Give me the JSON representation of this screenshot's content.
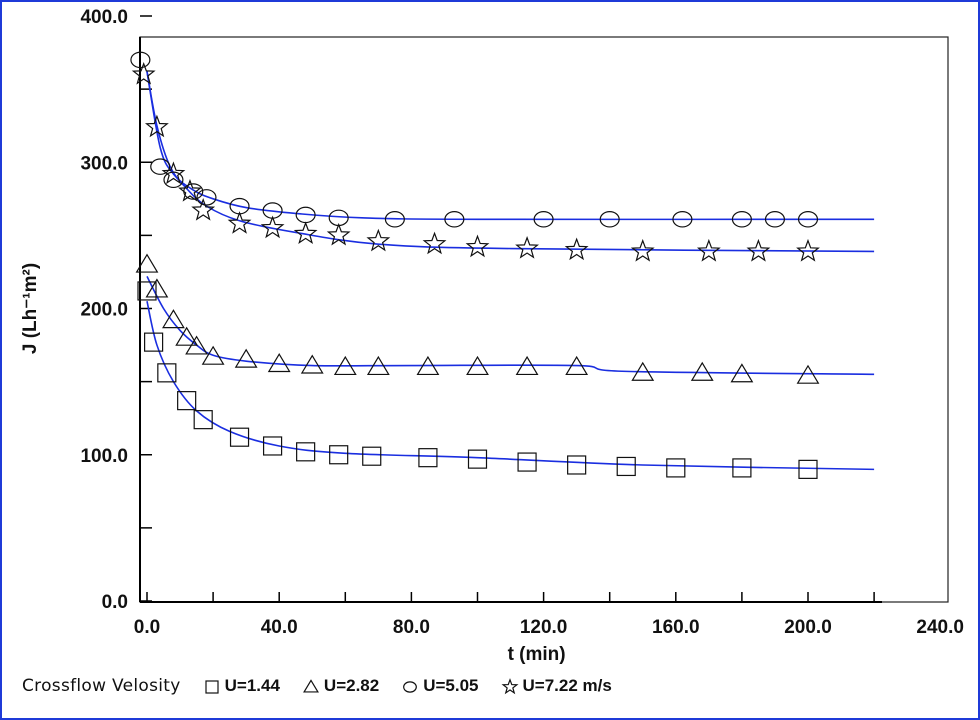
{
  "chart_data": {
    "type": "scatter",
    "title": "",
    "xlabel": "t (min)",
    "ylabel": "J (Lh⁻¹m²)",
    "xlim": [
      0,
      240
    ],
    "ylim": [
      0,
      400
    ],
    "xticks": [
      "0.0",
      "40.0",
      "80.0",
      "120.0",
      "160.0",
      "200.0",
      "240.0"
    ],
    "yticks": [
      "0.0",
      "100.0",
      "200.0",
      "300.0",
      "400.0"
    ],
    "legend": {
      "title": "Crossflow Velosity",
      "placement": "bottom"
    },
    "series": [
      {
        "name": "U=1.44",
        "marker": "square",
        "points": [
          [
            0,
            212
          ],
          [
            2,
            177
          ],
          [
            6,
            156
          ],
          [
            12,
            137
          ],
          [
            17,
            124
          ],
          [
            28,
            112
          ],
          [
            38,
            106
          ],
          [
            48,
            102
          ],
          [
            58,
            100
          ],
          [
            68,
            99
          ],
          [
            85,
            98
          ],
          [
            100,
            97
          ],
          [
            115,
            95
          ],
          [
            130,
            93
          ],
          [
            145,
            92
          ],
          [
            160,
            91
          ],
          [
            180,
            91
          ],
          [
            200,
            90
          ]
        ],
        "fit": [
          [
            0,
            205
          ],
          [
            3,
            175
          ],
          [
            8,
            150
          ],
          [
            15,
            130
          ],
          [
            25,
            116
          ],
          [
            40,
            106
          ],
          [
            60,
            101
          ],
          [
            100,
            98
          ],
          [
            150,
            93
          ],
          [
            220,
            90
          ]
        ]
      },
      {
        "name": "U=2.82",
        "marker": "triangle",
        "points": [
          [
            0,
            230
          ],
          [
            3,
            213
          ],
          [
            8,
            192
          ],
          [
            12,
            180
          ],
          [
            15,
            174
          ],
          [
            20,
            167
          ],
          [
            30,
            165
          ],
          [
            40,
            162
          ],
          [
            50,
            161
          ],
          [
            60,
            160
          ],
          [
            70,
            160
          ],
          [
            85,
            160
          ],
          [
            100,
            160
          ],
          [
            115,
            160
          ],
          [
            130,
            160
          ],
          [
            150,
            156
          ],
          [
            168,
            156
          ],
          [
            180,
            155
          ],
          [
            200,
            154
          ]
        ],
        "fit": [
          [
            0,
            222
          ],
          [
            5,
            200
          ],
          [
            10,
            185
          ],
          [
            15,
            175
          ],
          [
            20,
            168
          ],
          [
            30,
            164
          ],
          [
            50,
            161
          ],
          [
            80,
            161
          ],
          [
            130,
            161
          ],
          [
            145,
            157
          ],
          [
            220,
            155
          ]
        ]
      },
      {
        "name": "U=5.05",
        "marker": "circle",
        "points": [
          [
            -2,
            370
          ],
          [
            4,
            297
          ],
          [
            8,
            288
          ],
          [
            14,
            280
          ],
          [
            18,
            276
          ],
          [
            28,
            270
          ],
          [
            38,
            267
          ],
          [
            48,
            264
          ],
          [
            58,
            262
          ],
          [
            75,
            261
          ],
          [
            93,
            261
          ],
          [
            120,
            261
          ],
          [
            140,
            261
          ],
          [
            162,
            261
          ],
          [
            180,
            261
          ],
          [
            190,
            261
          ],
          [
            200,
            261
          ]
        ],
        "fit": [
          [
            0,
            362
          ],
          [
            4,
            310
          ],
          [
            8,
            292
          ],
          [
            14,
            281
          ],
          [
            20,
            275
          ],
          [
            30,
            269
          ],
          [
            45,
            265
          ],
          [
            65,
            262
          ],
          [
            100,
            261
          ],
          [
            220,
            261
          ]
        ]
      },
      {
        "name": "U=7.22 m/s",
        "marker": "star",
        "points": [
          [
            -1,
            360
          ],
          [
            3,
            324
          ],
          [
            8,
            292
          ],
          [
            13,
            280
          ],
          [
            17,
            267
          ],
          [
            28,
            258
          ],
          [
            38,
            255
          ],
          [
            48,
            251
          ],
          [
            58,
            250
          ],
          [
            70,
            246
          ],
          [
            87,
            244
          ],
          [
            100,
            242
          ],
          [
            115,
            241
          ],
          [
            130,
            240
          ],
          [
            150,
            239
          ],
          [
            170,
            239
          ],
          [
            185,
            239
          ],
          [
            200,
            239
          ]
        ],
        "fit": [
          [
            0,
            362
          ],
          [
            3,
            325
          ],
          [
            7,
            297
          ],
          [
            12,
            282
          ],
          [
            18,
            270
          ],
          [
            28,
            260
          ],
          [
            45,
            252
          ],
          [
            70,
            244
          ],
          [
            110,
            241
          ],
          [
            220,
            239
          ]
        ]
      }
    ]
  }
}
